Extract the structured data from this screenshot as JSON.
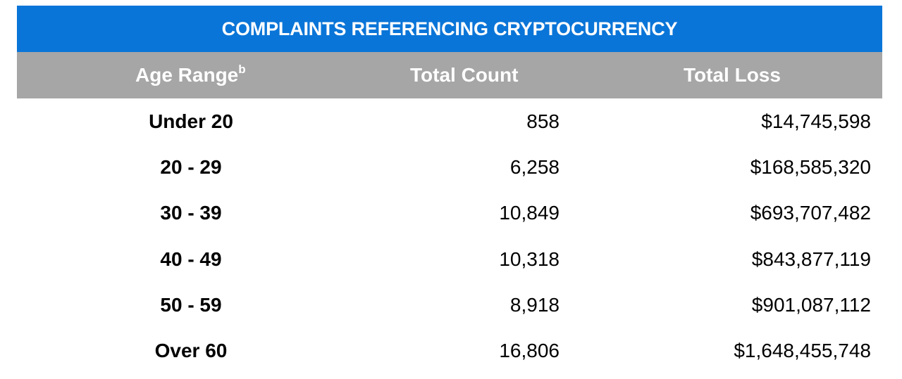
{
  "title": "COMPLAINTS REFERENCING CRYPTOCURRENCY",
  "columns": {
    "age": "Age Range",
    "age_note": "b",
    "count": "Total Count",
    "loss": "Total Loss"
  },
  "rows": [
    {
      "age": "Under 20",
      "count": "858",
      "loss": "$14,745,598"
    },
    {
      "age": "20 - 29",
      "count": "6,258",
      "loss": "$168,585,320"
    },
    {
      "age": "30 - 39",
      "count": "10,849",
      "loss": "$693,707,482"
    },
    {
      "age": "40 - 49",
      "count": "10,318",
      "loss": "$843,877,119"
    },
    {
      "age": "50 - 59",
      "count": "8,918",
      "loss": "$901,087,112"
    },
    {
      "age": "Over 60",
      "count": "16,806",
      "loss": "$1,648,455,748"
    }
  ],
  "colors": {
    "title_bg": "#0a75d8",
    "header_bg": "#a6a6a6"
  }
}
